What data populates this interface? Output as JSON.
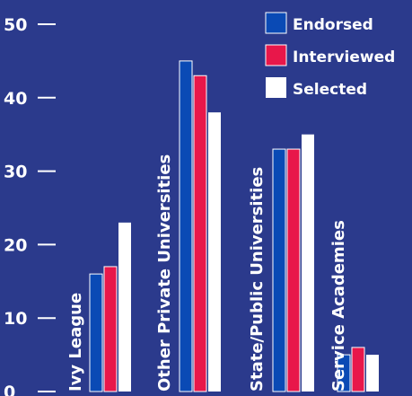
{
  "chart_data": {
    "type": "bar",
    "categories": [
      "Ivy League",
      "Other Private Universities",
      "State/Public Universities",
      "Service Academies"
    ],
    "series": [
      {
        "name": "Endorsed",
        "values": [
          16,
          45,
          33,
          5
        ]
      },
      {
        "name": "Interviewed",
        "values": [
          17,
          43,
          33,
          6
        ]
      },
      {
        "name": "Selected",
        "values": [
          23,
          38,
          35,
          5
        ]
      }
    ],
    "y_ticks": [
      "0",
      "10",
      "20",
      "30",
      "40",
      "50"
    ],
    "ylim": [
      0,
      50
    ],
    "grid": false,
    "legend_position": "top-right",
    "title": "",
    "xlabel": "",
    "ylabel": ""
  },
  "colors": {
    "background": "#2b3a8c",
    "axis_text": "#ffffff",
    "series": [
      "#0a4ab5",
      "#e8174a",
      "#ffffff"
    ],
    "bar_outline": "#ffffff"
  }
}
